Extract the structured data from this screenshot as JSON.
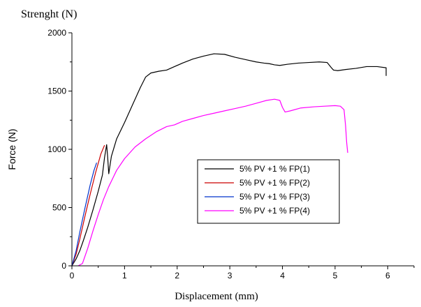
{
  "chart_data": {
    "type": "line",
    "title": "Strenght (N)",
    "xlabel": "Displacement (mm)",
    "ylabel": "Force (N)",
    "xlim": [
      0,
      6.5
    ],
    "ylim": [
      0,
      2000
    ],
    "xticks": [
      0,
      1,
      2,
      3,
      4,
      5,
      6
    ],
    "yticks": [
      0,
      500,
      1000,
      1500,
      2000
    ],
    "grid": false,
    "legend_position": "center-right",
    "series": [
      {
        "name": "5% PV +1 % FP(1)",
        "color": "#000000",
        "points": [
          [
            0,
            0
          ],
          [
            0.08,
            60
          ],
          [
            0.15,
            130
          ],
          [
            0.22,
            220
          ],
          [
            0.3,
            330
          ],
          [
            0.4,
            480
          ],
          [
            0.5,
            640
          ],
          [
            0.58,
            780
          ],
          [
            0.62,
            930
          ],
          [
            0.66,
            1040
          ],
          [
            0.68,
            930
          ],
          [
            0.7,
            790
          ],
          [
            0.75,
            940
          ],
          [
            0.85,
            1090
          ],
          [
            1.0,
            1230
          ],
          [
            1.15,
            1380
          ],
          [
            1.3,
            1530
          ],
          [
            1.4,
            1620
          ],
          [
            1.5,
            1655
          ],
          [
            1.65,
            1670
          ],
          [
            1.8,
            1680
          ],
          [
            1.9,
            1700
          ],
          [
            2.1,
            1740
          ],
          [
            2.3,
            1775
          ],
          [
            2.5,
            1800
          ],
          [
            2.7,
            1820
          ],
          [
            2.9,
            1815
          ],
          [
            3.1,
            1790
          ],
          [
            3.3,
            1770
          ],
          [
            3.5,
            1750
          ],
          [
            3.65,
            1740
          ],
          [
            3.75,
            1735
          ],
          [
            3.85,
            1725
          ],
          [
            3.95,
            1720
          ],
          [
            4.1,
            1730
          ],
          [
            4.3,
            1740
          ],
          [
            4.5,
            1745
          ],
          [
            4.7,
            1750
          ],
          [
            4.85,
            1745
          ],
          [
            4.93,
            1700
          ],
          [
            4.97,
            1680
          ],
          [
            5.05,
            1675
          ],
          [
            5.2,
            1685
          ],
          [
            5.4,
            1695
          ],
          [
            5.6,
            1710
          ],
          [
            5.8,
            1710
          ],
          [
            5.97,
            1700
          ],
          [
            5.97,
            1630
          ]
        ]
      },
      {
        "name": "5% PV +1 % FP(2)",
        "color": "#cc0000",
        "points": [
          [
            0,
            0
          ],
          [
            0.08,
            100
          ],
          [
            0.15,
            230
          ],
          [
            0.25,
            430
          ],
          [
            0.35,
            620
          ],
          [
            0.45,
            800
          ],
          [
            0.55,
            960
          ],
          [
            0.62,
            1035
          ]
        ]
      },
      {
        "name": "5% PV +1 % FP(3)",
        "color": "#0033cc",
        "points": [
          [
            0,
            0
          ],
          [
            0.08,
            130
          ],
          [
            0.15,
            290
          ],
          [
            0.25,
            500
          ],
          [
            0.35,
            700
          ],
          [
            0.42,
            820
          ],
          [
            0.47,
            885
          ]
        ]
      },
      {
        "name": "5% PV +1 % FP(4)",
        "color": "#ff00ff",
        "points": [
          [
            0.12,
            0
          ],
          [
            0.2,
            20
          ],
          [
            0.3,
            150
          ],
          [
            0.4,
            300
          ],
          [
            0.5,
            440
          ],
          [
            0.6,
            570
          ],
          [
            0.7,
            680
          ],
          [
            0.85,
            820
          ],
          [
            1.0,
            920
          ],
          [
            1.2,
            1020
          ],
          [
            1.4,
            1090
          ],
          [
            1.6,
            1150
          ],
          [
            1.8,
            1195
          ],
          [
            1.95,
            1210
          ],
          [
            2.1,
            1240
          ],
          [
            2.3,
            1265
          ],
          [
            2.5,
            1290
          ],
          [
            2.7,
            1310
          ],
          [
            2.9,
            1330
          ],
          [
            3.1,
            1350
          ],
          [
            3.3,
            1370
          ],
          [
            3.5,
            1395
          ],
          [
            3.7,
            1420
          ],
          [
            3.85,
            1430
          ],
          [
            3.95,
            1420
          ],
          [
            4.0,
            1360
          ],
          [
            4.05,
            1320
          ],
          [
            4.15,
            1330
          ],
          [
            4.35,
            1355
          ],
          [
            4.6,
            1365
          ],
          [
            4.8,
            1370
          ],
          [
            5.0,
            1375
          ],
          [
            5.1,
            1370
          ],
          [
            5.17,
            1340
          ],
          [
            5.2,
            1200
          ],
          [
            5.22,
            1060
          ],
          [
            5.24,
            970
          ]
        ]
      }
    ]
  }
}
